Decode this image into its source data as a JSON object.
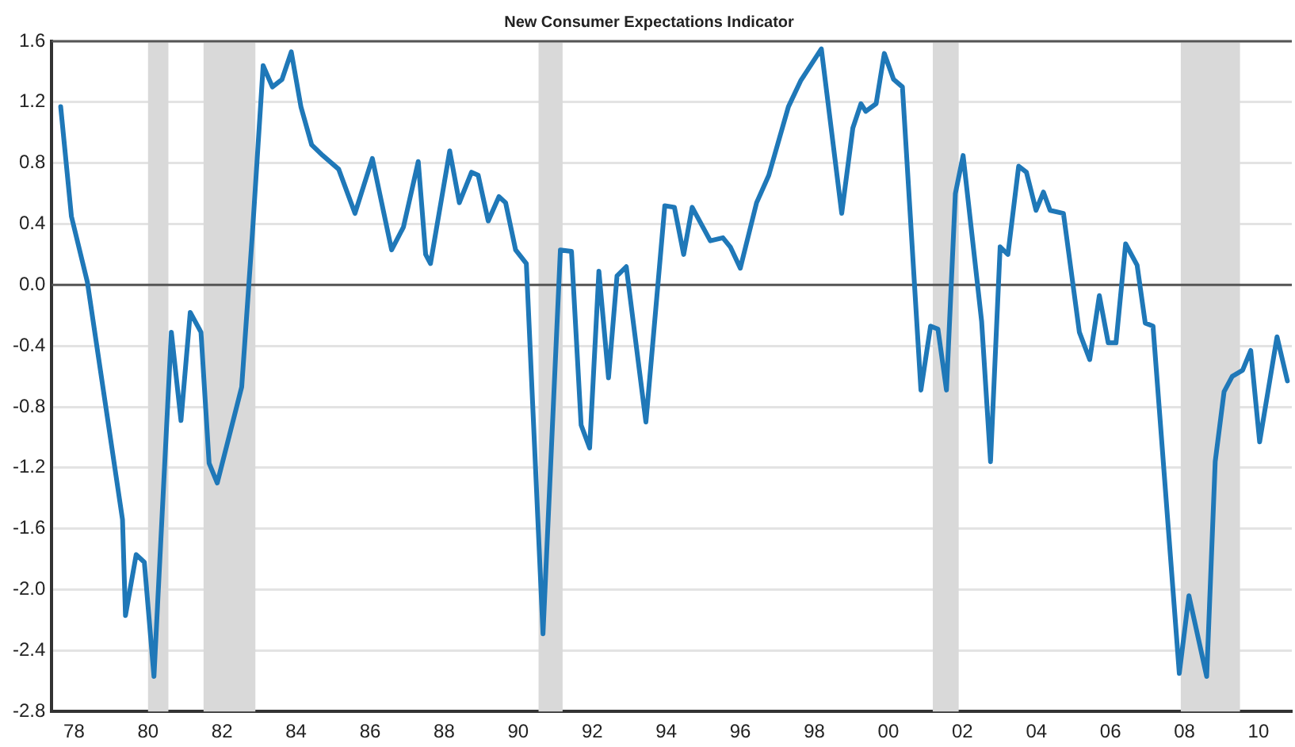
{
  "chart_data": {
    "type": "line",
    "title": "New Consumer Expectations Indicator",
    "x": [
      1977.64,
      1977.93,
      1978.36,
      1979.31,
      1979.39,
      1979.68,
      1979.9,
      1980.16,
      1980.63,
      1980.89,
      1981.14,
      1981.43,
      1981.65,
      1981.87,
      1982.53,
      1982.82,
      1983.11,
      1983.36,
      1983.62,
      1983.87,
      1984.13,
      1984.42,
      1984.72,
      1985.15,
      1985.59,
      1986.06,
      1986.58,
      1986.9,
      1987.3,
      1987.5,
      1987.63,
      1988.15,
      1988.41,
      1988.74,
      1988.92,
      1989.19,
      1989.48,
      1989.66,
      1989.93,
      1990.22,
      1990.67,
      1991.14,
      1991.44,
      1991.7,
      1991.93,
      1992.18,
      1992.44,
      1992.67,
      1992.92,
      1993.45,
      1993.96,
      1994.22,
      1994.47,
      1994.7,
      1995.19,
      1995.53,
      1995.73,
      1996.0,
      1996.44,
      1996.77,
      1997.3,
      1997.63,
      1998.19,
      1998.74,
      1999.04,
      1999.26,
      1999.39,
      1999.67,
      1999.89,
      2000.14,
      2000.38,
      2000.88,
      2001.14,
      2001.34,
      2001.57,
      2001.81,
      2002.02,
      2002.52,
      2002.76,
      2003.02,
      2003.23,
      2003.52,
      2003.73,
      2003.99,
      2004.19,
      2004.37,
      2004.73,
      2005.16,
      2005.44,
      2005.7,
      2005.94,
      2006.15,
      2006.41,
      2006.72,
      2006.94,
      2007.15,
      2007.86,
      2008.12,
      2008.6,
      2008.83,
      2009.07,
      2009.29,
      2009.57,
      2009.79,
      2010.03,
      2010.5,
      2010.78
    ],
    "series": [
      {
        "color": "#1f78b8",
        "values": [
          1.17,
          0.45,
          0.02,
          -1.54,
          -2.17,
          -1.77,
          -1.82,
          -2.57,
          -0.31,
          -0.89,
          -0.18,
          -0.31,
          -1.17,
          -1.3,
          -0.67,
          0.34,
          1.44,
          1.3,
          1.35,
          1.53,
          1.17,
          0.92,
          0.85,
          0.76,
          0.47,
          0.83,
          0.23,
          0.38,
          0.81,
          0.2,
          0.14,
          0.88,
          0.54,
          0.74,
          0.72,
          0.42,
          0.58,
          0.54,
          0.23,
          0.14,
          -2.29,
          0.23,
          0.22,
          -0.92,
          -1.07,
          0.09,
          -0.61,
          0.06,
          0.12,
          -0.9,
          0.52,
          0.51,
          0.2,
          0.51,
          0.29,
          0.31,
          0.25,
          0.11,
          0.54,
          0.72,
          1.17,
          1.34,
          1.55,
          0.47,
          1.03,
          1.19,
          1.14,
          1.19,
          1.52,
          1.35,
          1.3,
          -0.69,
          -0.27,
          -0.29,
          -0.69,
          0.6,
          0.85,
          -0.24,
          -1.16,
          0.25,
          0.2,
          0.78,
          0.74,
          0.49,
          0.61,
          0.49,
          0.47,
          -0.31,
          -0.49,
          -0.07,
          -0.38,
          -0.38,
          0.27,
          0.13,
          -0.25,
          -0.27,
          -2.55,
          -2.04,
          -2.57,
          -1.16,
          -0.7,
          -0.6,
          -0.56,
          -0.43,
          -1.03,
          -0.34,
          -0.63
        ]
      }
    ],
    "xlim": [
      1977.4,
      2010.9
    ],
    "xticks": [
      {
        "value": 1978,
        "label": "78"
      },
      {
        "value": 1980,
        "label": "80"
      },
      {
        "value": 1982,
        "label": "82"
      },
      {
        "value": 1984,
        "label": "84"
      },
      {
        "value": 1986,
        "label": "86"
      },
      {
        "value": 1988,
        "label": "88"
      },
      {
        "value": 1990,
        "label": "90"
      },
      {
        "value": 1992,
        "label": "92"
      },
      {
        "value": 1994,
        "label": "94"
      },
      {
        "value": 1996,
        "label": "96"
      },
      {
        "value": 1998,
        "label": "98"
      },
      {
        "value": 2000,
        "label": "00"
      },
      {
        "value": 2002,
        "label": "02"
      },
      {
        "value": 2004,
        "label": "04"
      },
      {
        "value": 2006,
        "label": "06"
      },
      {
        "value": 2008,
        "label": "08"
      },
      {
        "value": 2010,
        "label": "10"
      }
    ],
    "ylim": [
      -2.8,
      1.6
    ],
    "yticks": [
      {
        "value": -2.8,
        "label": "-2.8"
      },
      {
        "value": -2.4,
        "label": "-2.4"
      },
      {
        "value": -2,
        "label": "-2.0"
      },
      {
        "value": -1.6,
        "label": "-1.6"
      },
      {
        "value": -1.2,
        "label": "-1.2"
      },
      {
        "value": -0.8,
        "label": "-0.8"
      },
      {
        "value": -0.4,
        "label": "-0.4"
      },
      {
        "value": 0,
        "label": "0.0"
      },
      {
        "value": 0.4,
        "label": "0.4"
      },
      {
        "value": 0.8,
        "label": "0.8"
      },
      {
        "value": 1.2,
        "label": "1.2"
      },
      {
        "value": 1.6,
        "label": "1.6"
      }
    ],
    "grid": "y",
    "legend": false,
    "marker": "none",
    "line_style": "solid",
    "ref_lines": [
      {
        "axis": "y",
        "value": 0,
        "color": "#555555"
      }
    ],
    "bands": [
      {
        "axis": "x",
        "from": 1980.0,
        "to": 1980.55,
        "color": "#d9d9d9"
      },
      {
        "axis": "x",
        "from": 1981.5,
        "to": 1982.9,
        "color": "#d9d9d9"
      },
      {
        "axis": "x",
        "from": 1990.55,
        "to": 1991.2,
        "color": "#d9d9d9"
      },
      {
        "axis": "x",
        "from": 2001.2,
        "to": 2001.9,
        "color": "#d9d9d9"
      },
      {
        "axis": "x",
        "from": 2007.9,
        "to": 2009.5,
        "color": "#d9d9d9"
      }
    ]
  }
}
